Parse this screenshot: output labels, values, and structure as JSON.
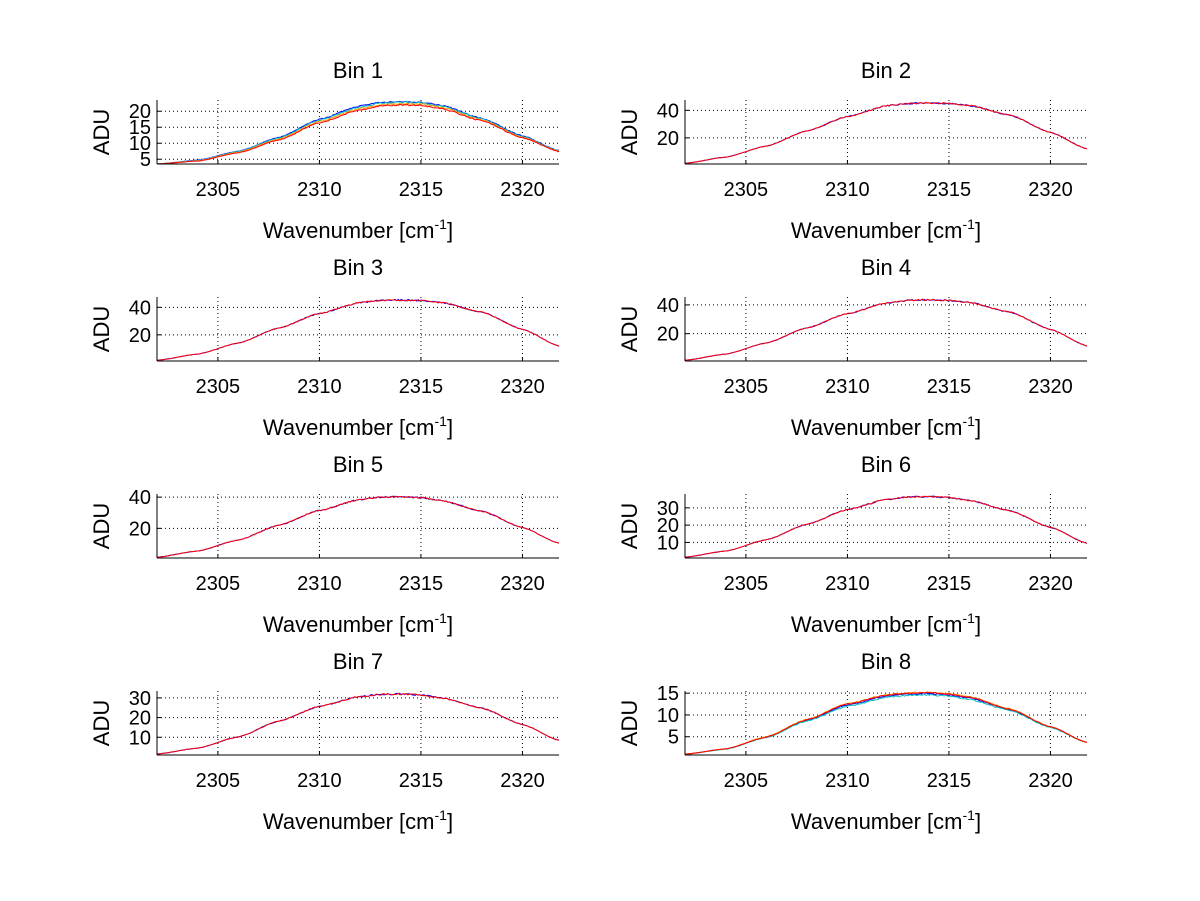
{
  "figure": {
    "xlabel_main": "Wavenumber [cm",
    "xlabel_sup": "-1",
    "xlabel_end": "]",
    "ylabel": "ADU"
  },
  "chart_data": [
    {
      "type": "line",
      "title": "Bin 1",
      "xlabel": "Wavenumber [cm-1]",
      "ylabel": "ADU",
      "xlim": [
        2302,
        2321.8
      ],
      "ylim": [
        3.5,
        23.5
      ],
      "xticks": [
        2305,
        2310,
        2315,
        2320
      ],
      "yticks": [
        5,
        10,
        15,
        20
      ],
      "grid": true,
      "peak_x": 2314.5,
      "series": [
        {
          "color": "#0000ff",
          "values_x": [
            2302,
            2304,
            2306,
            2308,
            2310,
            2312,
            2313,
            2314,
            2315,
            2316,
            2318,
            2320,
            2321.8
          ],
          "values_y": [
            3.5,
            4.7,
            7.5,
            11.8,
            17.5,
            21.6,
            22.8,
            23.0,
            22.8,
            21.8,
            17.8,
            12.3,
            7.7
          ]
        },
        {
          "color": "#00bfbf",
          "values_x": [
            2302,
            2304,
            2306,
            2308,
            2310,
            2312,
            2313,
            2314,
            2315,
            2316,
            2318,
            2320,
            2321.8
          ],
          "values_y": [
            3.5,
            4.6,
            7.4,
            11.6,
            17.2,
            21.3,
            22.5,
            22.8,
            22.6,
            21.6,
            17.6,
            12.1,
            7.6
          ]
        },
        {
          "color": "#ff9900",
          "values_x": [
            2302,
            2304,
            2306,
            2308,
            2310,
            2312,
            2313,
            2314,
            2315,
            2316,
            2318,
            2320,
            2321.8
          ],
          "values_y": [
            3.5,
            4.5,
            7.2,
            11.3,
            16.8,
            20.8,
            22.0,
            22.4,
            22.2,
            21.2,
            17.3,
            11.9,
            7.5
          ]
        },
        {
          "color": "#ff0000",
          "values_x": [
            2302,
            2304,
            2306,
            2308,
            2310,
            2312,
            2313,
            2314,
            2315,
            2316,
            2318,
            2320,
            2321.8
          ],
          "values_y": [
            3.5,
            4.4,
            7.0,
            11.0,
            16.4,
            20.4,
            21.6,
            22.0,
            21.8,
            20.8,
            17.0,
            11.7,
            7.4
          ]
        }
      ]
    },
    {
      "type": "line",
      "title": "Bin 2",
      "xlabel": "Wavenumber [cm-1]",
      "ylabel": "ADU",
      "xlim": [
        2302,
        2321.8
      ],
      "ylim": [
        1,
        47.5
      ],
      "xticks": [
        2305,
        2310,
        2315,
        2320
      ],
      "yticks": [
        20,
        40
      ],
      "grid": true,
      "peak_x": 2314,
      "series": [
        {
          "color": "#0000ff",
          "values_x": [
            2302,
            2304,
            2306,
            2308,
            2310,
            2312,
            2313,
            2314,
            2315,
            2316,
            2318,
            2320,
            2321.8
          ],
          "values_y": [
            1.5,
            6,
            14,
            25,
            35.5,
            43.5,
            45,
            45.3,
            45,
            43.5,
            36.5,
            24,
            12
          ]
        },
        {
          "color": "#ff0000",
          "values_x": [
            2302,
            2304,
            2306,
            2308,
            2310,
            2312,
            2313,
            2314,
            2315,
            2316,
            2318,
            2320,
            2321.8
          ],
          "values_y": [
            1.5,
            6,
            14,
            25,
            35.5,
            43.5,
            45,
            45.3,
            45,
            43.5,
            36.5,
            24,
            12
          ]
        }
      ]
    },
    {
      "type": "line",
      "title": "Bin 3",
      "xlabel": "Wavenumber [cm-1]",
      "ylabel": "ADU",
      "xlim": [
        2302,
        2321.8
      ],
      "ylim": [
        1,
        47.5
      ],
      "xticks": [
        2305,
        2310,
        2315,
        2320
      ],
      "yticks": [
        20,
        40
      ],
      "grid": true,
      "peak_x": 2314,
      "series": [
        {
          "color": "#0000ff",
          "values_x": [
            2302,
            2304,
            2306,
            2308,
            2310,
            2312,
            2313,
            2314,
            2315,
            2316,
            2318,
            2320,
            2321.8
          ],
          "values_y": [
            1.5,
            6,
            14,
            25,
            35.5,
            43.5,
            45,
            45.3,
            45,
            43.5,
            36.5,
            24,
            12
          ]
        },
        {
          "color": "#ff0000",
          "values_x": [
            2302,
            2304,
            2306,
            2308,
            2310,
            2312,
            2313,
            2314,
            2315,
            2316,
            2318,
            2320,
            2321.8
          ],
          "values_y": [
            1.5,
            6,
            14,
            25,
            35.5,
            43.5,
            45,
            45.3,
            45,
            43.5,
            36.5,
            24,
            12
          ]
        }
      ]
    },
    {
      "type": "line",
      "title": "Bin 4",
      "xlabel": "Wavenumber [cm-1]",
      "ylabel": "ADU",
      "xlim": [
        2302,
        2321.8
      ],
      "ylim": [
        1,
        45.5
      ],
      "xticks": [
        2305,
        2310,
        2315,
        2320
      ],
      "yticks": [
        20,
        40
      ],
      "grid": true,
      "peak_x": 2314,
      "series": [
        {
          "color": "#0000ff",
          "values_x": [
            2302,
            2304,
            2306,
            2308,
            2310,
            2312,
            2313,
            2314,
            2315,
            2316,
            2318,
            2320,
            2321.8
          ],
          "values_y": [
            1.5,
            5.8,
            13.5,
            24,
            34,
            41.5,
            43.2,
            43.5,
            43.2,
            41.7,
            35,
            23,
            11.5
          ]
        },
        {
          "color": "#ff0000",
          "values_x": [
            2302,
            2304,
            2306,
            2308,
            2310,
            2312,
            2313,
            2314,
            2315,
            2316,
            2318,
            2320,
            2321.8
          ],
          "values_y": [
            1.5,
            5.8,
            13.5,
            24,
            34,
            41.5,
            43.2,
            43.5,
            43.2,
            41.7,
            35,
            23,
            11.5
          ]
        }
      ]
    },
    {
      "type": "line",
      "title": "Bin 5",
      "xlabel": "Wavenumber [cm-1]",
      "ylabel": "ADU",
      "xlim": [
        2302,
        2321.8
      ],
      "ylim": [
        1,
        42
      ],
      "xticks": [
        2305,
        2310,
        2315,
        2320
      ],
      "yticks": [
        20,
        40
      ],
      "grid": true,
      "peak_x": 2313.5,
      "series": [
        {
          "color": "#0000ff",
          "values_x": [
            2302,
            2304,
            2306,
            2308,
            2310,
            2312,
            2313,
            2314,
            2315,
            2316,
            2318,
            2320,
            2321.8
          ],
          "values_y": [
            1.5,
            5.5,
            12.5,
            22,
            31.5,
            38.5,
            40,
            40.3,
            39.6,
            37.8,
            31,
            20.5,
            10.5
          ]
        },
        {
          "color": "#ff0000",
          "values_x": [
            2302,
            2304,
            2306,
            2308,
            2310,
            2312,
            2313,
            2314,
            2315,
            2316,
            2318,
            2320,
            2321.8
          ],
          "values_y": [
            1.5,
            5.5,
            12.5,
            22,
            31.5,
            38.5,
            40,
            40.3,
            39.6,
            37.8,
            31,
            20.5,
            10.5
          ]
        }
      ]
    },
    {
      "type": "line",
      "title": "Bin 6",
      "xlabel": "Wavenumber [cm-1]",
      "ylabel": "ADU",
      "xlim": [
        2302,
        2321.8
      ],
      "ylim": [
        1,
        38
      ],
      "xticks": [
        2305,
        2310,
        2315,
        2320
      ],
      "yticks": [
        10,
        20,
        30
      ],
      "grid": true,
      "peak_x": 2313.5,
      "series": [
        {
          "color": "#0000ff",
          "values_x": [
            2302,
            2304,
            2306,
            2308,
            2310,
            2312,
            2313,
            2314,
            2315,
            2316,
            2318,
            2320,
            2321.8
          ],
          "values_y": [
            1.5,
            5,
            11.5,
            20.5,
            29,
            35,
            36.3,
            36.5,
            36,
            34.3,
            28.3,
            18.7,
            9.5
          ]
        },
        {
          "color": "#ff0000",
          "values_x": [
            2302,
            2304,
            2306,
            2308,
            2310,
            2312,
            2313,
            2314,
            2315,
            2316,
            2318,
            2320,
            2321.8
          ],
          "values_y": [
            1.5,
            5,
            11.5,
            20.5,
            29,
            35,
            36.3,
            36.5,
            36,
            34.3,
            28.3,
            18.7,
            9.5
          ]
        }
      ]
    },
    {
      "type": "line",
      "title": "Bin 7",
      "xlabel": "Wavenumber [cm-1]",
      "ylabel": "ADU",
      "xlim": [
        2302,
        2321.8
      ],
      "ylim": [
        1,
        33.5
      ],
      "xticks": [
        2305,
        2310,
        2315,
        2320
      ],
      "yticks": [
        10,
        20,
        30
      ],
      "grid": true,
      "peak_x": 2313.5,
      "series": [
        {
          "color": "#0000ff",
          "values_x": [
            2302,
            2304,
            2306,
            2308,
            2310,
            2312,
            2313,
            2314,
            2315,
            2316,
            2318,
            2320,
            2321.8
          ],
          "values_y": [
            1.5,
            4.5,
            10.2,
            18.2,
            25.7,
            30.7,
            31.8,
            32,
            31.5,
            30,
            24.8,
            16.5,
            8.5
          ]
        },
        {
          "color": "#ff0000",
          "values_x": [
            2302,
            2304,
            2306,
            2308,
            2310,
            2312,
            2313,
            2314,
            2315,
            2316,
            2318,
            2320,
            2321.8
          ],
          "values_y": [
            1.5,
            4.5,
            10.2,
            18.2,
            25.7,
            30.7,
            31.8,
            32,
            31.5,
            30,
            24.8,
            16.5,
            8.5
          ]
        }
      ]
    },
    {
      "type": "line",
      "title": "Bin 8",
      "xlabel": "Wavenumber [cm-1]",
      "ylabel": "ADU",
      "xlim": [
        2302,
        2321.8
      ],
      "ylim": [
        0.8,
        15.5
      ],
      "xticks": [
        2305,
        2310,
        2315,
        2320
      ],
      "yticks": [
        5,
        10,
        15
      ],
      "grid": true,
      "peak_x": 2313.5,
      "series": [
        {
          "color": "#0000ff",
          "values_x": [
            2302,
            2304,
            2306,
            2308,
            2310,
            2312,
            2313,
            2314,
            2315,
            2316,
            2318,
            2320,
            2321.8
          ],
          "values_y": [
            1,
            2.2,
            4.9,
            8.8,
            12.3,
            14.4,
            14.8,
            14.9,
            14.6,
            13.9,
            11.2,
            7.2,
            3.7
          ]
        },
        {
          "color": "#00bfbf",
          "values_x": [
            2302,
            2304,
            2306,
            2308,
            2310,
            2312,
            2313,
            2314,
            2315,
            2316,
            2318,
            2320,
            2321.8
          ],
          "values_y": [
            1,
            2.1,
            4.8,
            8.6,
            12,
            14.1,
            14.5,
            14.6,
            14.3,
            13.6,
            11,
            7.1,
            3.7
          ]
        },
        {
          "color": "#ff9900",
          "values_x": [
            2302,
            2304,
            2306,
            2308,
            2310,
            2312,
            2313,
            2314,
            2315,
            2316,
            2318,
            2320,
            2321.8
          ],
          "values_y": [
            1,
            2.2,
            5,
            9,
            12.6,
            14.7,
            15.1,
            15.2,
            14.9,
            14.2,
            11.4,
            7.3,
            3.7
          ]
        },
        {
          "color": "#ff0000",
          "values_x": [
            2302,
            2304,
            2306,
            2308,
            2310,
            2312,
            2313,
            2314,
            2315,
            2316,
            2318,
            2320,
            2321.8
          ],
          "values_y": [
            1,
            2.2,
            4.9,
            8.9,
            12.5,
            14.6,
            15,
            15.1,
            14.8,
            14.1,
            11.3,
            7.3,
            3.7
          ]
        }
      ]
    }
  ]
}
